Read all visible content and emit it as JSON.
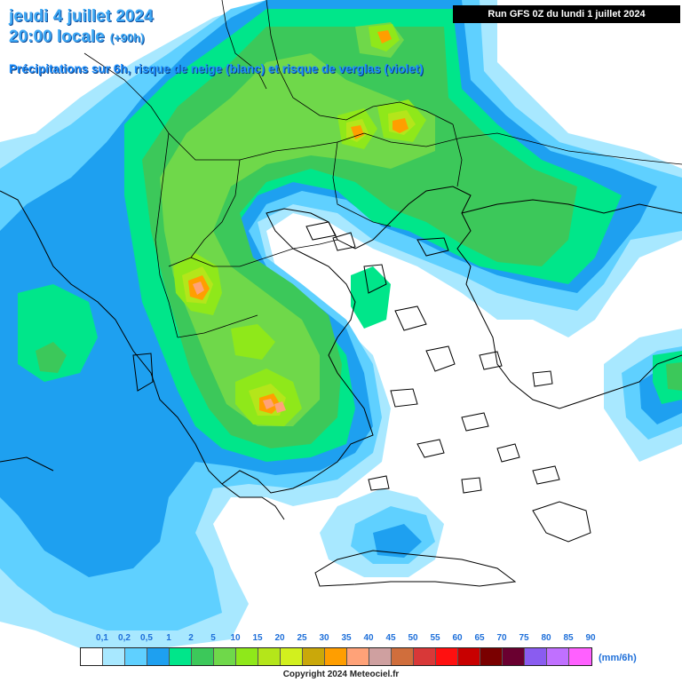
{
  "header": {
    "date": "jeudi 4 juillet 2024",
    "time": "20:00 locale",
    "lead": "(+90h)",
    "subtitle": "Précipitations sur 6h, risque de neige (blanc) et risque de verglas (violet)",
    "run": "Run GFS 0Z du lundi 1 juillet 2024"
  },
  "legend": {
    "unit": "(mm/6h)",
    "ticks": [
      "0,1",
      "0,2",
      "0,5",
      "1",
      "2",
      "5",
      "10",
      "15",
      "20",
      "25",
      "30",
      "35",
      "40",
      "45",
      "50",
      "55",
      "60",
      "65",
      "70",
      "75",
      "80",
      "85",
      "90"
    ],
    "colors": [
      "#ffffff",
      "#a8e8ff",
      "#5fd0ff",
      "#1ea0f0",
      "#00e68a",
      "#3cc85a",
      "#6fd84a",
      "#8fe81a",
      "#b4e61a",
      "#d2f01e",
      "#caa80a",
      "#ff9e00",
      "#ffa278",
      "#cfa0a0",
      "#d06e3c",
      "#d83838",
      "#ff1010",
      "#c80000",
      "#7a0000",
      "#6a0030",
      "#8a5cf0",
      "#c070ff",
      "#ff60ff"
    ]
  },
  "footer": {
    "copyright": "Copyright 2024 Meteociel.fr"
  },
  "map": {
    "region": "Balkans / Grèce / Mer Égée",
    "fill_colors": {
      "sea": "#ffffff",
      "light_blue": "#a8e8ff",
      "mid_blue": "#5fd0ff",
      "blue": "#1ea0f0",
      "aqua_green": "#00e68a",
      "green": "#3cc85a",
      "light_green": "#6fd84a",
      "lime": "#8fe81a",
      "yellow_green": "#b4e61a",
      "orange": "#ff9e00",
      "salmon": "#ffa278"
    }
  }
}
